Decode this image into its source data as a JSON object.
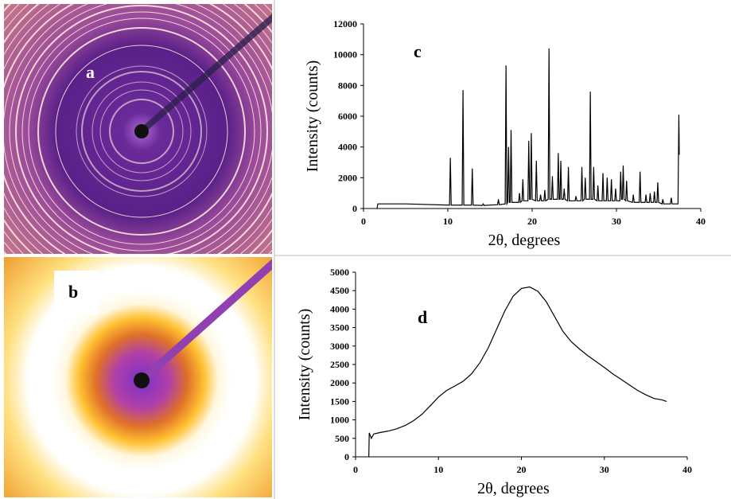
{
  "panels": [
    {
      "label": "a"
    },
    {
      "label": "b"
    }
  ],
  "chart_data": [
    {
      "type": "line",
      "annotation": "c",
      "x_label": "2θ, degrees",
      "y_label": "Intensity (counts)",
      "color": "#000000",
      "xlim": [
        0,
        40
      ],
      "xticks": [
        0,
        10,
        20,
        30,
        40
      ],
      "ylim": [
        0,
        12000
      ],
      "yticks": [
        0,
        2000,
        4000,
        6000,
        8000,
        10000,
        12000
      ],
      "x": [
        1.6,
        1.7,
        5,
        10.2,
        10.3,
        10.4,
        11.7,
        11.8,
        11.9,
        12.8,
        12.9,
        13,
        14.1,
        14.2,
        14.3,
        15.9,
        16,
        16.1,
        16.8,
        16.9,
        17,
        17.1,
        17.2,
        17.3,
        17.4,
        17.5,
        17.6,
        18.4,
        18.5,
        18.6,
        18.8,
        18.9,
        19,
        19.5,
        19.6,
        19.7,
        19.8,
        19.9,
        20,
        20.4,
        20.5,
        20.6,
        20.9,
        21,
        21.1,
        21.4,
        21.5,
        21.6,
        21.9,
        22,
        22.1,
        22.3,
        22.4,
        22.5,
        23,
        23.1,
        23.2,
        23.3,
        23.4,
        23.5,
        23.7,
        23.8,
        23.9,
        24.2,
        24.3,
        24.4,
        25.1,
        25.2,
        25.3,
        25.8,
        25.9,
        26,
        26.2,
        26.3,
        26.4,
        26.8,
        26.9,
        27,
        27.2,
        27.3,
        27.4,
        27.7,
        27.8,
        27.9,
        28.3,
        28.4,
        28.5,
        28.8,
        28.9,
        29,
        29.3,
        29.4,
        29.5,
        29.8,
        29.9,
        30,
        30.4,
        30.5,
        30.6,
        30.7,
        30.8,
        30.9,
        31.1,
        31.2,
        31.3,
        31.9,
        32,
        32.1,
        32.7,
        32.8,
        32.9,
        33.4,
        33.5,
        33.6,
        33.9,
        34,
        34.1,
        34.4,
        34.5,
        34.6,
        34.8,
        34.9,
        35,
        35.4,
        35.5,
        35.6,
        36.4,
        36.5,
        36.6,
        37.3,
        37.4,
        37.45
      ],
      "values": [
        0,
        300,
        300,
        220,
        3300,
        220,
        220,
        7700,
        220,
        220,
        2600,
        220,
        200,
        300,
        200,
        250,
        600,
        250,
        300,
        9300,
        300,
        400,
        4000,
        400,
        400,
        5100,
        400,
        400,
        1000,
        400,
        500,
        1900,
        500,
        500,
        4400,
        600,
        600,
        4900,
        600,
        500,
        3100,
        500,
        500,
        900,
        500,
        500,
        1200,
        500,
        600,
        10400,
        600,
        600,
        2100,
        600,
        600,
        3600,
        600,
        600,
        3100,
        600,
        600,
        1300,
        600,
        500,
        2700,
        500,
        500,
        800,
        500,
        500,
        2700,
        500,
        600,
        2000,
        600,
        600,
        7600,
        600,
        600,
        2700,
        600,
        500,
        1500,
        500,
        500,
        2300,
        500,
        500,
        2000,
        500,
        500,
        1900,
        500,
        500,
        1300,
        500,
        500,
        2400,
        600,
        600,
        2800,
        600,
        500,
        1800,
        500,
        400,
        900,
        400,
        400,
        2400,
        400,
        400,
        900,
        400,
        400,
        1000,
        400,
        400,
        1100,
        400,
        400,
        1700,
        400,
        300,
        600,
        300,
        300,
        700,
        300,
        300,
        6100,
        3500
      ]
    },
    {
      "type": "line",
      "annotation": "d",
      "x_label": "2θ, degrees",
      "y_label": "Intensity (counts)",
      "color": "#000000",
      "xlim": [
        0,
        40
      ],
      "xticks": [
        0,
        10,
        20,
        30,
        40
      ],
      "ylim": [
        0,
        5000
      ],
      "yticks": [
        0,
        500,
        1000,
        1500,
        2000,
        2500,
        3000,
        3500,
        4000,
        4500,
        5000
      ],
      "x": [
        1.6,
        1.65,
        1.9,
        2.2,
        3,
        4,
        5,
        6,
        7,
        8,
        9,
        10,
        11,
        12,
        13,
        14,
        15,
        16,
        17,
        18,
        19,
        20,
        21,
        22,
        23,
        24,
        25,
        26,
        27,
        28,
        29,
        30,
        31,
        32,
        33,
        34,
        35,
        36,
        37,
        37.5
      ],
      "values": [
        0,
        650,
        500,
        620,
        660,
        700,
        760,
        850,
        980,
        1150,
        1380,
        1620,
        1800,
        1920,
        2050,
        2250,
        2550,
        2950,
        3450,
        3950,
        4350,
        4560,
        4600,
        4480,
        4200,
        3800,
        3400,
        3120,
        2920,
        2740,
        2580,
        2420,
        2250,
        2100,
        1950,
        1800,
        1680,
        1580,
        1540,
        1500
      ]
    }
  ]
}
